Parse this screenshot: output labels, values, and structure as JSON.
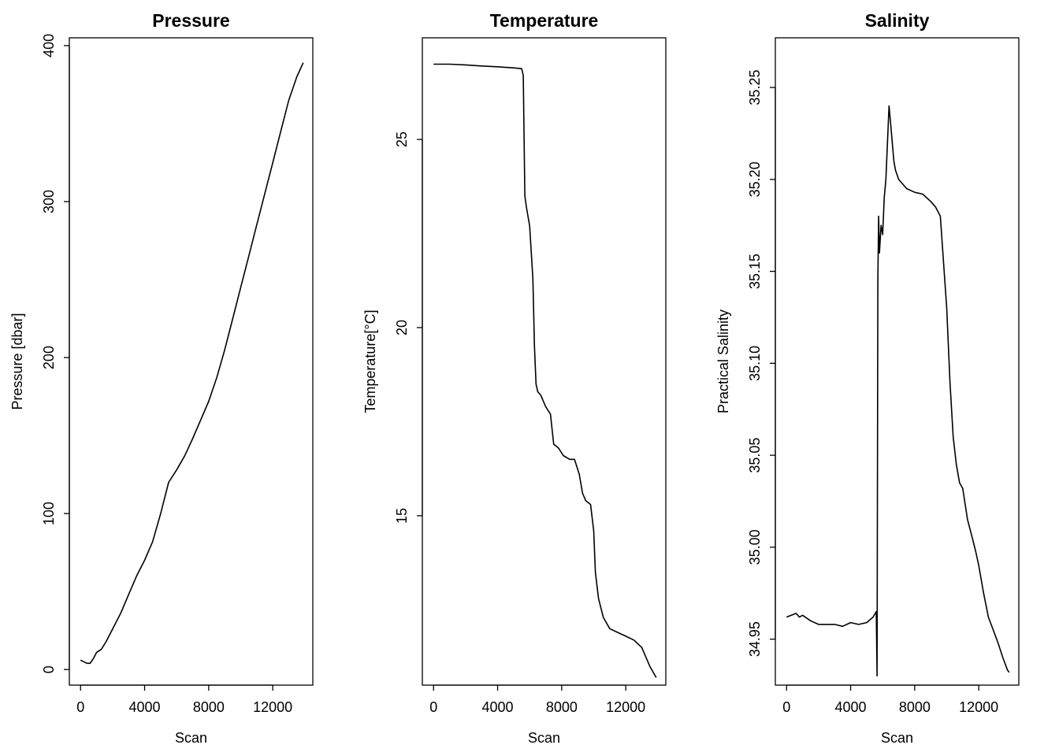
{
  "chart_data": [
    {
      "type": "line",
      "title": "Pressure",
      "xlabel": "Scan",
      "ylabel": "Pressure [dbar]",
      "xlim": [
        -700,
        14500
      ],
      "ylim": [
        -10,
        405
      ],
      "xticks": [
        0,
        4000,
        8000,
        12000
      ],
      "yticks": [
        0,
        100,
        200,
        300,
        400
      ],
      "grid": false,
      "x": [
        0,
        200,
        400,
        600,
        800,
        1000,
        1300,
        1600,
        2000,
        2500,
        3000,
        3500,
        4000,
        4500,
        5000,
        5500,
        6000,
        6500,
        7000,
        7500,
        8000,
        8500,
        9000,
        9500,
        10000,
        10500,
        11000,
        11500,
        12000,
        12500,
        13000,
        13500,
        13900
      ],
      "values": [
        6,
        5,
        4,
        4,
        7,
        11,
        13,
        18,
        26,
        36,
        48,
        60,
        70,
        82,
        100,
        120,
        128,
        137,
        148,
        160,
        172,
        187,
        205,
        225,
        245,
        265,
        285,
        305,
        325,
        345,
        365,
        380,
        389
      ]
    },
    {
      "type": "line",
      "title": "Temperature",
      "xlabel": "Scan",
      "ylabel": "Temperature[°C]",
      "xlim": [
        -700,
        14500
      ],
      "ylim": [
        10.5,
        27.7
      ],
      "xticks": [
        0,
        4000,
        8000,
        12000
      ],
      "yticks": [
        15,
        20,
        25
      ],
      "grid": false,
      "x": [
        0,
        1000,
        2000,
        3000,
        4000,
        5000,
        5500,
        5600,
        5700,
        5800,
        6000,
        6200,
        6300,
        6400,
        6500,
        6700,
        7000,
        7300,
        7500,
        7800,
        8100,
        8500,
        8800,
        9100,
        9300,
        9500,
        9800,
        10000,
        10100,
        10300,
        10600,
        11000,
        11500,
        12000,
        12500,
        13000,
        13500,
        13900
      ],
      "values": [
        27.0,
        27.0,
        26.98,
        26.95,
        26.93,
        26.9,
        26.88,
        26.7,
        23.5,
        23.2,
        22.7,
        21.3,
        19.5,
        18.5,
        18.3,
        18.2,
        17.9,
        17.7,
        16.9,
        16.8,
        16.6,
        16.5,
        16.5,
        16.1,
        15.6,
        15.4,
        15.3,
        14.6,
        13.5,
        12.8,
        12.3,
        12.0,
        11.9,
        11.8,
        11.7,
        11.5,
        11.0,
        10.7
      ]
    },
    {
      "type": "line",
      "title": "Salinity",
      "xlabel": "Scan",
      "ylabel": "Practical Salinity",
      "xlim": [
        -700,
        14500
      ],
      "ylim": [
        34.925,
        35.277
      ],
      "xticks": [
        0,
        4000,
        8000,
        12000
      ],
      "yticks": [
        34.95,
        35.0,
        35.05,
        35.1,
        35.15,
        35.2,
        35.25
      ],
      "yticklabels": [
        "34.95",
        "35.00",
        "35.05",
        "35.10",
        "35.15",
        "35.20",
        "35.25"
      ],
      "grid": false,
      "x": [
        0,
        300,
        600,
        800,
        1000,
        1500,
        2000,
        2500,
        3000,
        3500,
        4000,
        4500,
        5000,
        5400,
        5600,
        5650,
        5700,
        5750,
        5800,
        5900,
        6000,
        6100,
        6200,
        6300,
        6400,
        6500,
        6600,
        6700,
        6800,
        7000,
        7500,
        8000,
        8500,
        9000,
        9300,
        9600,
        10000,
        10200,
        10400,
        10600,
        10800,
        11000,
        11300,
        11600,
        11800,
        12000,
        12300,
        12600,
        12900,
        13200,
        13500,
        13800,
        13900
      ],
      "values": [
        34.962,
        34.963,
        34.964,
        34.962,
        34.963,
        34.96,
        34.958,
        34.958,
        34.958,
        34.957,
        34.959,
        34.958,
        34.959,
        34.962,
        34.965,
        34.93,
        35.145,
        35.18,
        35.16,
        35.175,
        35.17,
        35.19,
        35.2,
        35.22,
        35.24,
        35.23,
        35.22,
        35.21,
        35.205,
        35.2,
        35.195,
        35.193,
        35.192,
        35.188,
        35.185,
        35.18,
        35.13,
        35.09,
        35.06,
        35.045,
        35.035,
        35.032,
        35.015,
        35.005,
        34.998,
        34.99,
        34.975,
        34.962,
        34.955,
        34.948,
        34.94,
        34.933,
        34.932
      ]
    }
  ]
}
